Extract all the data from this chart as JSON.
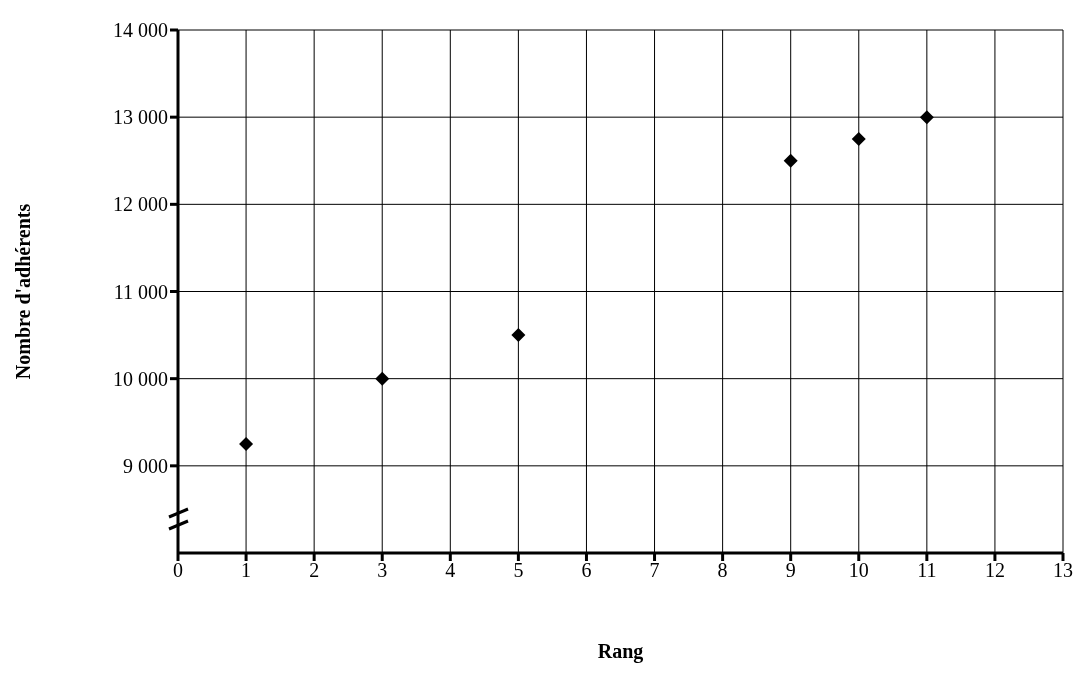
{
  "chart_data": {
    "type": "scatter",
    "xlabel": "Rang",
    "ylabel": "Nombre d'adhérents",
    "x": [
      1,
      3,
      5,
      9,
      10,
      11
    ],
    "series": [
      {
        "color": "#000000",
        "values": [
          9250,
          10000,
          10500,
          12500,
          12750,
          13000
        ]
      }
    ],
    "xlim": [
      0,
      13
    ],
    "xticks": [
      0,
      1,
      2,
      3,
      4,
      5,
      6,
      7,
      8,
      9,
      10,
      11,
      12,
      13
    ],
    "ylim": [
      8000,
      14000
    ],
    "yticks": [
      {
        "value": 9000,
        "label": "9 000"
      },
      {
        "value": 10000,
        "label": "10 000"
      },
      {
        "value": 11000,
        "label": "11 000"
      },
      {
        "value": 12000,
        "label": "12 000"
      },
      {
        "value": 13000,
        "label": "13 000"
      },
      {
        "value": 14000,
        "label": "14 000"
      }
    ],
    "grid": true,
    "marker": "diamond",
    "legend": false
  }
}
